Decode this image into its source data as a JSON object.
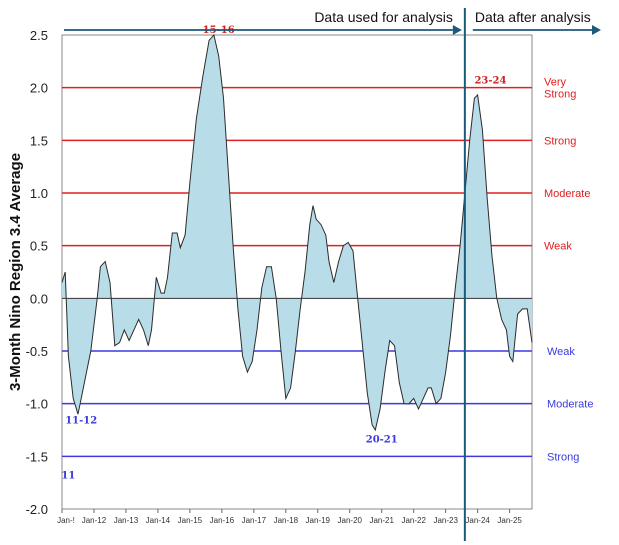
{
  "chart_data": {
    "type": "area",
    "ylabel": "3-Month Nino Region 3.4 Average",
    "ylim": [
      -2.0,
      2.5
    ],
    "yticks": [
      "2.5",
      "2.0",
      "1.5",
      "1.0",
      "0.5",
      "0.0",
      "-0.5",
      "-1.0",
      "-1.5",
      "-2.0"
    ],
    "xtick_labels": [
      "Jan-!",
      "Jan-12",
      "Jan-13",
      "Jan-14",
      "Jan-15",
      "Jan-16",
      "Jan-17",
      "Jan-18",
      "Jan-19",
      "Jan-20",
      "Jan-21",
      "Jan-22",
      "Jan-23",
      "Jan-24",
      "Jan-25"
    ],
    "x_start_year": 2011.0,
    "x_end_year": 2025.7,
    "series": [
      {
        "name": "3-Month Nino 3.4 average",
        "color": "#2b2b2b",
        "fill_color": "#b8dde8",
        "points": [
          [
            2011.0,
            0.15
          ],
          [
            2011.1,
            0.25
          ],
          [
            2011.2,
            -0.55
          ],
          [
            2011.35,
            -0.95
          ],
          [
            2011.5,
            -1.1
          ],
          [
            2011.7,
            -0.8
          ],
          [
            2011.9,
            -0.5
          ],
          [
            2012.1,
            0.0
          ],
          [
            2012.2,
            0.3
          ],
          [
            2012.35,
            0.35
          ],
          [
            2012.5,
            0.15
          ],
          [
            2012.65,
            -0.45
          ],
          [
            2012.8,
            -0.42
          ],
          [
            2012.95,
            -0.3
          ],
          [
            2013.1,
            -0.4
          ],
          [
            2013.25,
            -0.3
          ],
          [
            2013.4,
            -0.2
          ],
          [
            2013.55,
            -0.3
          ],
          [
            2013.7,
            -0.45
          ],
          [
            2013.8,
            -0.3
          ],
          [
            2013.95,
            0.2
          ],
          [
            2014.1,
            0.05
          ],
          [
            2014.2,
            0.05
          ],
          [
            2014.3,
            0.2
          ],
          [
            2014.45,
            0.62
          ],
          [
            2014.6,
            0.62
          ],
          [
            2014.7,
            0.48
          ],
          [
            2014.85,
            0.6
          ],
          [
            2015.0,
            1.1
          ],
          [
            2015.2,
            1.7
          ],
          [
            2015.4,
            2.1
          ],
          [
            2015.6,
            2.45
          ],
          [
            2015.75,
            2.5
          ],
          [
            2015.9,
            2.3
          ],
          [
            2016.05,
            1.9
          ],
          [
            2016.2,
            1.2
          ],
          [
            2016.35,
            0.5
          ],
          [
            2016.5,
            -0.1
          ],
          [
            2016.65,
            -0.55
          ],
          [
            2016.8,
            -0.7
          ],
          [
            2016.95,
            -0.6
          ],
          [
            2017.1,
            -0.3
          ],
          [
            2017.25,
            0.1
          ],
          [
            2017.4,
            0.3
          ],
          [
            2017.55,
            0.3
          ],
          [
            2017.7,
            0.0
          ],
          [
            2017.85,
            -0.5
          ],
          [
            2018.0,
            -0.95
          ],
          [
            2018.15,
            -0.85
          ],
          [
            2018.3,
            -0.5
          ],
          [
            2018.45,
            -0.1
          ],
          [
            2018.6,
            0.25
          ],
          [
            2018.75,
            0.7
          ],
          [
            2018.85,
            0.88
          ],
          [
            2018.95,
            0.75
          ],
          [
            2019.1,
            0.7
          ],
          [
            2019.25,
            0.6
          ],
          [
            2019.35,
            0.35
          ],
          [
            2019.5,
            0.15
          ],
          [
            2019.65,
            0.35
          ],
          [
            2019.8,
            0.5
          ],
          [
            2019.95,
            0.53
          ],
          [
            2020.1,
            0.45
          ],
          [
            2020.25,
            0.0
          ],
          [
            2020.4,
            -0.45
          ],
          [
            2020.55,
            -0.9
          ],
          [
            2020.7,
            -1.2
          ],
          [
            2020.8,
            -1.25
          ],
          [
            2020.95,
            -1.05
          ],
          [
            2021.1,
            -0.7
          ],
          [
            2021.25,
            -0.4
          ],
          [
            2021.4,
            -0.45
          ],
          [
            2021.55,
            -0.8
          ],
          [
            2021.7,
            -1.0
          ],
          [
            2021.85,
            -1.0
          ],
          [
            2022.0,
            -0.95
          ],
          [
            2022.15,
            -1.05
          ],
          [
            2022.3,
            -0.95
          ],
          [
            2022.45,
            -0.85
          ],
          [
            2022.55,
            -0.85
          ],
          [
            2022.7,
            -1.0
          ],
          [
            2022.85,
            -0.95
          ],
          [
            2023.0,
            -0.7
          ],
          [
            2023.15,
            -0.35
          ],
          [
            2023.3,
            0.1
          ],
          [
            2023.45,
            0.5
          ],
          [
            2023.6,
            1.0
          ],
          [
            2023.75,
            1.5
          ],
          [
            2023.9,
            1.9
          ],
          [
            2024.0,
            1.93
          ],
          [
            2024.15,
            1.6
          ],
          [
            2024.3,
            0.95
          ],
          [
            2024.45,
            0.4
          ],
          [
            2024.6,
            0.0
          ],
          [
            2024.75,
            -0.2
          ],
          [
            2024.9,
            -0.3
          ],
          [
            2025.0,
            -0.55
          ],
          [
            2025.1,
            -0.6
          ],
          [
            2025.25,
            -0.15
          ],
          [
            2025.4,
            -0.1
          ],
          [
            2025.55,
            -0.1
          ],
          [
            2025.7,
            -0.42
          ]
        ]
      }
    ],
    "thresholds": [
      {
        "value": 2.0,
        "color": "#e02020",
        "label": [
          "Very",
          "Strong"
        ]
      },
      {
        "value": 1.5,
        "color": "#e02020",
        "label": [
          "Strong"
        ]
      },
      {
        "value": 1.0,
        "color": "#e02020",
        "label": [
          "Moderate"
        ]
      },
      {
        "value": 0.5,
        "color": "#e02020",
        "label": [
          "Weak"
        ]
      },
      {
        "value": -0.5,
        "color": "#3a3adf",
        "label": [
          "Weak"
        ]
      },
      {
        "value": -1.0,
        "color": "#3a3adf",
        "label": [
          "Moderate"
        ]
      },
      {
        "value": -1.5,
        "color": "#3a3adf",
        "label": [
          "Strong"
        ]
      }
    ],
    "event_labels": [
      {
        "text": "15-16",
        "x": 2015.9,
        "y": 2.52,
        "color": "red"
      },
      {
        "text": "23-24",
        "x": 2024.4,
        "y": 2.04,
        "color": "red"
      },
      {
        "text": "11-12",
        "x": 2011.6,
        "y": -1.19,
        "color": "blue"
      },
      {
        "text": "20-21",
        "x": 2021.0,
        "y": -1.37,
        "color": "blue"
      },
      {
        "text": "11",
        "x": 2011.2,
        "y": -1.71,
        "color": "blue"
      }
    ],
    "annotations": {
      "analysis_label": "Data used for analysis",
      "after_label": "Data after analysis",
      "divider_x": 2023.6,
      "arrow_color": "#1a5a7a"
    }
  }
}
